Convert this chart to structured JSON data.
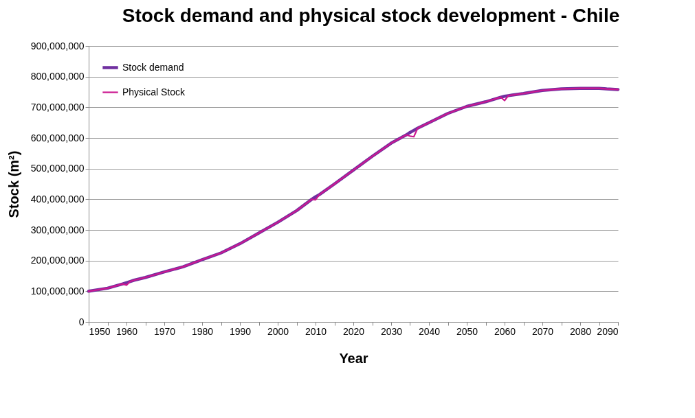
{
  "chart_data": {
    "type": "line",
    "title": "Stock demand and physical stock development - Chile",
    "xlabel": "Year",
    "ylabel": "Stock (m²)",
    "x": [
      1950,
      1955,
      1959,
      1960,
      1961,
      1962,
      1965,
      1970,
      1975,
      1980,
      1985,
      1990,
      1995,
      2000,
      2005,
      2009,
      2010,
      2011,
      2015,
      2020,
      2025,
      2030,
      2034,
      2035,
      2036,
      2037,
      2040,
      2045,
      2050,
      2055,
      2059,
      2060,
      2061,
      2062,
      2065,
      2070,
      2075,
      2080,
      2085,
      2087,
      2090
    ],
    "series": [
      {
        "name": "Stock demand",
        "color": "#7030a0",
        "values": [
          100000000,
          110000000,
          124000000,
          128000000,
          132000000,
          136000000,
          145000000,
          163000000,
          180000000,
          203000000,
          225000000,
          255000000,
          290000000,
          325000000,
          363000000,
          400000000,
          408000000,
          415000000,
          450000000,
          495000000,
          540000000,
          583000000,
          610000000,
          618000000,
          625000000,
          632000000,
          650000000,
          680000000,
          703000000,
          718000000,
          733000000,
          736000000,
          738000000,
          740000000,
          745000000,
          755000000,
          760000000,
          762000000,
          762000000,
          760000000,
          758000000
        ]
      },
      {
        "name": "Physical Stock",
        "color": "#cc1890",
        "values": [
          100000000,
          110000000,
          124000000,
          120000000,
          132000000,
          136000000,
          145000000,
          163000000,
          180000000,
          203000000,
          225000000,
          255000000,
          290000000,
          325000000,
          363000000,
          400000000,
          398000000,
          415000000,
          450000000,
          495000000,
          540000000,
          583000000,
          610000000,
          606000000,
          604000000,
          632000000,
          650000000,
          680000000,
          703000000,
          718000000,
          733000000,
          722000000,
          738000000,
          740000000,
          745000000,
          755000000,
          760000000,
          762000000,
          762000000,
          760000000,
          758000000
        ]
      }
    ],
    "xlim": [
      1950,
      2090
    ],
    "xticks": [
      1950,
      {
        "value": 1955,
        "label": null
      },
      1960,
      {
        "value": 1965,
        "label": null
      },
      1970,
      {
        "value": 1975,
        "label": null
      },
      1980,
      {
        "value": 1985,
        "label": null
      },
      1990,
      {
        "value": 1995,
        "label": null
      },
      2000,
      {
        "value": 2005,
        "label": null
      },
      2010,
      {
        "value": 2015,
        "label": null
      },
      2020,
      {
        "value": 2025,
        "label": null
      },
      2030,
      {
        "value": 2035,
        "label": null
      },
      2040,
      {
        "value": 2045,
        "label": null
      },
      2050,
      {
        "value": 2055,
        "label": null
      },
      2060,
      {
        "value": 2065,
        "label": null
      },
      2070,
      {
        "value": 2075,
        "label": null
      },
      2080,
      {
        "value": 2085,
        "label": null
      },
      2090
    ],
    "ylim": [
      0,
      900000000
    ],
    "yticks": [
      0,
      {
        "value": 100000000,
        "label": "100,000,000"
      },
      {
        "value": 200000000,
        "label": "200,000,000"
      },
      {
        "value": 300000000,
        "label": "300,000,000"
      },
      {
        "value": 400000000,
        "label": "400,000,000"
      },
      {
        "value": 500000000,
        "label": "500,000,000"
      },
      {
        "value": 600000000,
        "label": "600,000,000"
      },
      {
        "value": 700000000,
        "label": "700,000,000"
      },
      {
        "value": 800000000,
        "label": "800,000,000"
      },
      {
        "value": 900000000,
        "label": "900,000,000"
      }
    ],
    "grid": "y",
    "legend": "top left",
    "marker": "none",
    "line_style": "solid"
  }
}
